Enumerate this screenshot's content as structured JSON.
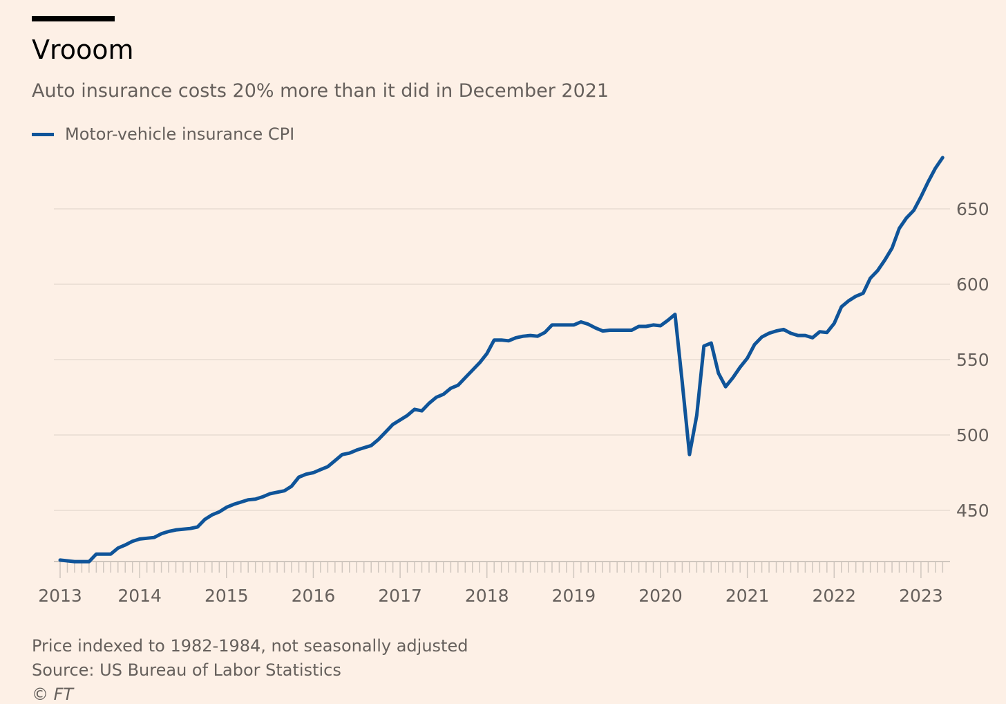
{
  "header": {
    "title": "Vrooom",
    "subtitle": "Auto insurance costs 20% more than it did in December 2021"
  },
  "footer": {
    "note": "Price indexed to 1982-1984, not seasonally adjusted",
    "source": "Source: US Bureau of Labor Statistics",
    "copyright": "© FT"
  },
  "colors": {
    "line": "#0f5499",
    "background": "#fdf0e6",
    "grid": "#e8dcd2"
  },
  "chart_data": {
    "type": "line",
    "title": "Vrooom",
    "subtitle": "Auto insurance costs 20% more than it did in December 2021",
    "xlabel": "",
    "ylabel": "",
    "x_unit": "month index (0 = start of series, monthly)",
    "ylim": [
      416,
      686
    ],
    "y_ticks": [
      450,
      500,
      550,
      600,
      650
    ],
    "x_ticks": [
      {
        "index": 0,
        "label": "2013"
      },
      {
        "index": 11,
        "label": "2014"
      },
      {
        "index": 23,
        "label": "2015"
      },
      {
        "index": 35,
        "label": "2016"
      },
      {
        "index": 47,
        "label": "2017"
      },
      {
        "index": 59,
        "label": "2018"
      },
      {
        "index": 71,
        "label": "2019"
      },
      {
        "index": 83,
        "label": "2020"
      },
      {
        "index": 95,
        "label": "2021"
      },
      {
        "index": 107,
        "label": "2022"
      },
      {
        "index": 119,
        "label": "2023"
      }
    ],
    "grid": true,
    "legend": "top-left",
    "series": [
      {
        "name": "Motor-vehicle insurance CPI",
        "values": [
          417,
          416.5,
          416,
          416,
          416,
          421,
          421,
          421,
          425,
          427,
          429.5,
          431,
          431.5,
          432,
          434.5,
          436,
          437,
          437.5,
          438,
          439,
          444,
          447,
          449,
          452,
          454,
          455.5,
          457,
          457.5,
          459,
          461,
          462,
          463,
          466,
          472,
          474,
          475,
          477,
          479,
          483,
          487,
          488,
          490,
          491.5,
          493,
          497,
          502,
          507,
          510,
          513,
          517,
          516,
          521,
          525,
          527,
          531,
          533,
          538,
          543,
          548,
          554,
          563,
          563,
          562.5,
          564.5,
          565.5,
          566,
          565.5,
          568,
          573,
          573,
          573,
          573,
          575,
          573.5,
          571,
          569,
          569.5,
          569.5,
          569.5,
          569.5,
          572,
          572,
          573,
          572.5,
          576,
          580,
          535,
          487,
          513,
          559,
          561,
          541,
          532,
          538,
          545,
          551,
          560,
          565,
          567.5,
          569,
          570,
          567.5,
          566,
          566,
          564.5,
          568.5,
          568,
          574,
          585,
          589,
          592,
          594,
          604,
          609,
          616,
          624,
          637,
          644,
          649,
          658,
          668,
          677,
          684
        ]
      }
    ]
  }
}
